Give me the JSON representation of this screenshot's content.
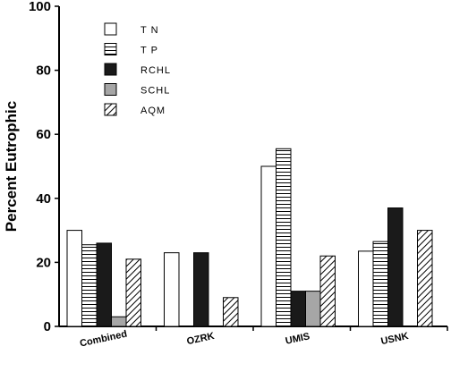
{
  "chart_data": {
    "type": "bar",
    "title": "",
    "xlabel": "",
    "ylabel": "Percent Eutrophic",
    "ylim": [
      0,
      100
    ],
    "yticks": [
      0,
      20,
      40,
      60,
      80,
      100
    ],
    "grid": false,
    "legend_position": "top-left",
    "categories": [
      "Combined",
      "OZRK",
      "UMIS",
      "USNK"
    ],
    "series": [
      {
        "name": "TN",
        "pattern": "open",
        "values": [
          30,
          23,
          50,
          23.5
        ]
      },
      {
        "name": "TP",
        "pattern": "horizontal",
        "values": [
          25.5,
          null,
          55.5,
          26.5
        ]
      },
      {
        "name": "RCHL",
        "pattern": "black",
        "values": [
          26,
          23,
          11,
          37
        ]
      },
      {
        "name": "SCHL",
        "pattern": "gray",
        "values": [
          3,
          null,
          11,
          null
        ]
      },
      {
        "name": "AQM",
        "pattern": "diagonal",
        "values": [
          21,
          9,
          22,
          30
        ]
      }
    ],
    "colors": {
      "black": "#1a1a1a",
      "gray": "#a6a6a6",
      "outline": "#000000"
    }
  }
}
